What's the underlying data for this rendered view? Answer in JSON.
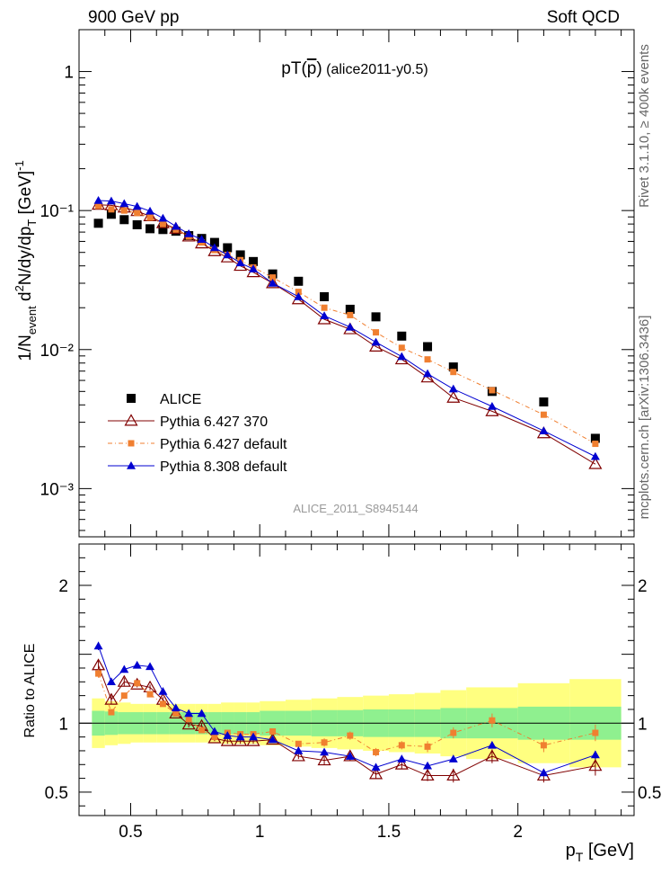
{
  "header": {
    "left": "900 GeV pp",
    "right": "Soft QCD"
  },
  "side_labels": {
    "rivet": "Rivet 3.1.10, ≥ 400k events",
    "mcplots": "mcplots.cern.ch [arXiv:1306.3436]"
  },
  "colors": {
    "alice": "#000000",
    "py6_370": "#800000",
    "py6_default": "#f07f30",
    "py8_default": "#0000d0",
    "band_inner": "#8ff08f",
    "band_outer": "#ffff80"
  },
  "chart_data": [
    {
      "type": "scatter",
      "title": "pT(p̅) (alice2011-y0.5)",
      "ylabel": "1/N_event d²N/dy/dp_T [GeV]⁻¹",
      "yscale": "log",
      "ylim": [
        0.00045,
        2.0
      ],
      "xlim": [
        0.3,
        2.45
      ],
      "ytick_labels": [
        "10⁻³",
        "10⁻²",
        "10⁻¹",
        "1"
      ],
      "watermark": "ALICE_2011_S8945144",
      "legend_position": "lower-left",
      "x": [
        0.375,
        0.425,
        0.475,
        0.525,
        0.575,
        0.625,
        0.675,
        0.725,
        0.775,
        0.825,
        0.875,
        0.925,
        0.975,
        1.05,
        1.15,
        1.25,
        1.35,
        1.45,
        1.55,
        1.65,
        1.75,
        1.9,
        2.1,
        2.3
      ],
      "series": [
        {
          "name": "ALICE",
          "values": [
            0.081,
            0.094,
            0.086,
            0.079,
            0.074,
            0.073,
            0.071,
            0.066,
            0.063,
            0.059,
            0.054,
            0.048,
            0.043,
            0.035,
            0.031,
            0.024,
            0.0195,
            0.0172,
            0.0125,
            0.0105,
            0.0075,
            0.005,
            0.0042,
            0.0023
          ]
        },
        {
          "name": "Pythia 6.427 370",
          "values": [
            0.11,
            0.109,
            0.105,
            0.099,
            0.091,
            0.081,
            0.074,
            0.065,
            0.058,
            0.051,
            0.046,
            0.04,
            0.036,
            0.03,
            0.023,
            0.0165,
            0.014,
            0.0105,
            0.0085,
            0.0063,
            0.0045,
            0.0036,
            0.0025,
            0.0015
          ]
        },
        {
          "name": "Pythia 6.427 default",
          "values": [
            0.108,
            0.102,
            0.1,
            0.096,
            0.089,
            0.08,
            0.073,
            0.065,
            0.059,
            0.052,
            0.048,
            0.044,
            0.039,
            0.033,
            0.026,
            0.02,
            0.0177,
            0.0133,
            0.0103,
            0.0085,
            0.0069,
            0.0051,
            0.0034,
            0.0021
          ]
        },
        {
          "name": "Pythia 8.308 default",
          "values": [
            0.118,
            0.117,
            0.112,
            0.107,
            0.099,
            0.088,
            0.077,
            0.068,
            0.062,
            0.054,
            0.048,
            0.042,
            0.038,
            0.03,
            0.024,
            0.0175,
            0.0145,
            0.0113,
            0.0089,
            0.0067,
            0.0052,
            0.0039,
            0.0026,
            0.0017
          ]
        }
      ]
    },
    {
      "type": "scatter",
      "ylabel": "Ratio to ALICE",
      "xlabel": "p_T [GeV]",
      "xlim": [
        0.3,
        2.45
      ],
      "ylim": [
        0.33,
        2.3
      ],
      "xticks": [
        0.5,
        1,
        1.5,
        2
      ],
      "xtick_labels": [
        "0.5",
        "1",
        "1.5",
        "2"
      ],
      "yticks": [
        0.5,
        1,
        2
      ],
      "ytick_labels": [
        "0.5",
        "1",
        "2"
      ],
      "x": [
        0.375,
        0.425,
        0.475,
        0.525,
        0.575,
        0.625,
        0.675,
        0.725,
        0.775,
        0.825,
        0.875,
        0.925,
        0.975,
        1.05,
        1.15,
        1.25,
        1.35,
        1.45,
        1.55,
        1.65,
        1.75,
        1.9,
        2.1,
        2.3
      ],
      "bins": [
        0.35,
        0.4,
        0.45,
        0.5,
        0.55,
        0.6,
        0.65,
        0.7,
        0.75,
        0.8,
        0.85,
        0.9,
        0.95,
        1.0,
        1.1,
        1.2,
        1.3,
        1.4,
        1.5,
        1.6,
        1.7,
        1.8,
        2.0,
        2.2,
        2.4
      ],
      "band_inner": [
        0.09,
        0.085,
        0.08,
        0.08,
        0.08,
        0.08,
        0.08,
        0.08,
        0.08,
        0.08,
        0.08,
        0.08,
        0.08,
        0.09,
        0.09,
        0.095,
        0.095,
        0.1,
        0.1,
        0.1,
        0.11,
        0.11,
        0.12,
        0.12
      ],
      "band_outer": [
        0.18,
        0.16,
        0.15,
        0.14,
        0.14,
        0.14,
        0.14,
        0.14,
        0.14,
        0.14,
        0.15,
        0.15,
        0.15,
        0.16,
        0.17,
        0.18,
        0.19,
        0.2,
        0.21,
        0.22,
        0.24,
        0.26,
        0.29,
        0.32
      ],
      "series": [
        {
          "name": "Pythia 6.427 370",
          "values": [
            1.42,
            1.17,
            1.3,
            1.28,
            1.26,
            1.17,
            1.07,
            0.99,
            0.98,
            0.89,
            0.87,
            0.87,
            0.87,
            0.88,
            0.76,
            0.73,
            0.76,
            0.63,
            0.7,
            0.62,
            0.62,
            0.76,
            0.62,
            0.69
          ],
          "errors": [
            0.04,
            0.03,
            0.03,
            0.02,
            0.02,
            0.02,
            0.02,
            0.02,
            0.02,
            0.02,
            0.02,
            0.02,
            0.02,
            0.02,
            0.02,
            0.03,
            0.03,
            0.03,
            0.03,
            0.04,
            0.05,
            0.05,
            0.05,
            0.07
          ]
        },
        {
          "name": "Pythia 6.427 default",
          "values": [
            1.36,
            1.08,
            1.2,
            1.29,
            1.21,
            1.14,
            1.07,
            1.03,
            0.95,
            0.9,
            0.93,
            0.92,
            0.92,
            0.94,
            0.85,
            0.86,
            0.91,
            0.79,
            0.84,
            0.83,
            0.93,
            1.02,
            0.84,
            0.93
          ],
          "errors": [
            0.03,
            0.02,
            0.02,
            0.02,
            0.02,
            0.02,
            0.02,
            0.02,
            0.02,
            0.02,
            0.02,
            0.02,
            0.02,
            0.02,
            0.02,
            0.03,
            0.03,
            0.03,
            0.03,
            0.04,
            0.04,
            0.05,
            0.05,
            0.06
          ]
        },
        {
          "name": "Pythia 8.308 default",
          "values": [
            1.56,
            1.3,
            1.39,
            1.42,
            1.41,
            1.23,
            1.11,
            1.07,
            1.07,
            0.94,
            0.91,
            0.9,
            0.9,
            0.88,
            0.8,
            0.79,
            0.76,
            0.68,
            0.74,
            0.69,
            0.74,
            0.84,
            0.64,
            0.77
          ],
          "errors": [
            0.03,
            0.02,
            0.02,
            0.02,
            0.02,
            0.02,
            0.02,
            0.02,
            0.02,
            0.02,
            0.02,
            0.02,
            0.02,
            0.02,
            0.02,
            0.02,
            0.02,
            0.02,
            0.02,
            0.02,
            0.02,
            0.02,
            0.02,
            0.03
          ]
        }
      ]
    }
  ]
}
